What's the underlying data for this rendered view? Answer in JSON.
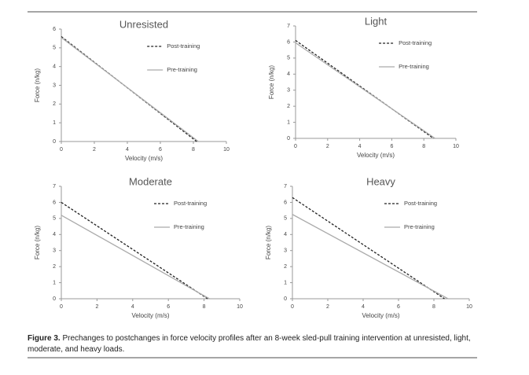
{
  "chart_data": [
    {
      "type": "line",
      "title": "Unresisted",
      "xlabel": "Velocity (m/s)",
      "ylabel": "Force (n/kg)",
      "xlim": [
        0,
        10
      ],
      "xticks": [
        0,
        2,
        4,
        6,
        8,
        10
      ],
      "ylim": [
        0,
        6
      ],
      "yticks": [
        0,
        1,
        2,
        3,
        4,
        5,
        6
      ],
      "legend": "upper right",
      "series": [
        {
          "name": "Post-training",
          "color": "#222222",
          "style": "dashed",
          "x": [
            0,
            8.2
          ],
          "values": [
            5.6,
            0
          ]
        },
        {
          "name": "Pre-training",
          "color": "#aaaaaa",
          "style": "solid",
          "x": [
            0,
            8.3
          ],
          "values": [
            5.55,
            0
          ]
        }
      ]
    },
    {
      "type": "line",
      "title": "Light",
      "xlabel": "Velocity (m/s)",
      "ylabel": "Force (n/kg)",
      "xlim": [
        0,
        10
      ],
      "xticks": [
        0,
        2,
        4,
        6,
        8,
        10
      ],
      "ylim": [
        0,
        7
      ],
      "yticks": [
        0,
        1,
        2,
        3,
        4,
        5,
        6,
        7
      ],
      "legend": "upper right",
      "series": [
        {
          "name": "Post-training",
          "color": "#222222",
          "style": "dashed",
          "x": [
            0,
            8.6
          ],
          "values": [
            6.1,
            0
          ]
        },
        {
          "name": "Pre-training",
          "color": "#aaaaaa",
          "style": "solid",
          "x": [
            0,
            8.7
          ],
          "values": [
            5.95,
            0
          ]
        }
      ]
    },
    {
      "type": "line",
      "title": "Moderate",
      "xlabel": "Velocity (m/s)",
      "ylabel": "Force (n/kg)",
      "xlim": [
        0,
        10
      ],
      "xticks": [
        0,
        2,
        4,
        6,
        8,
        10
      ],
      "ylim": [
        0,
        7
      ],
      "yticks": [
        0,
        1,
        2,
        3,
        4,
        5,
        6,
        7
      ],
      "legend": "upper right",
      "series": [
        {
          "name": "Post-training",
          "color": "#222222",
          "style": "dashed",
          "x": [
            0,
            8.2
          ],
          "values": [
            6.0,
            0
          ]
        },
        {
          "name": "Pre-training",
          "color": "#aaaaaa",
          "style": "solid",
          "x": [
            0,
            8.3
          ],
          "values": [
            5.2,
            0
          ]
        }
      ]
    },
    {
      "type": "line",
      "title": "Heavy",
      "xlabel": "Velocity (m/s)",
      "ylabel": "Force (n/kg)",
      "xlim": [
        0,
        10
      ],
      "xticks": [
        0,
        2,
        4,
        6,
        8,
        10
      ],
      "ylim": [
        0,
        7
      ],
      "yticks": [
        0,
        1,
        2,
        3,
        4,
        5,
        6,
        7
      ],
      "legend": "upper right",
      "series": [
        {
          "name": "Post-training",
          "color": "#222222",
          "style": "dashed",
          "x": [
            0,
            8.6
          ],
          "values": [
            6.3,
            0
          ]
        },
        {
          "name": "Pre-training",
          "color": "#aaaaaa",
          "style": "solid",
          "x": [
            0,
            8.8
          ],
          "values": [
            5.25,
            0
          ]
        }
      ]
    }
  ],
  "caption": {
    "label": "Figure 3.",
    "text": "Prechanges to postchanges in force velocity profiles after an 8-week sled-pull training intervention at unresisted, light, moderate, and heavy loads."
  }
}
